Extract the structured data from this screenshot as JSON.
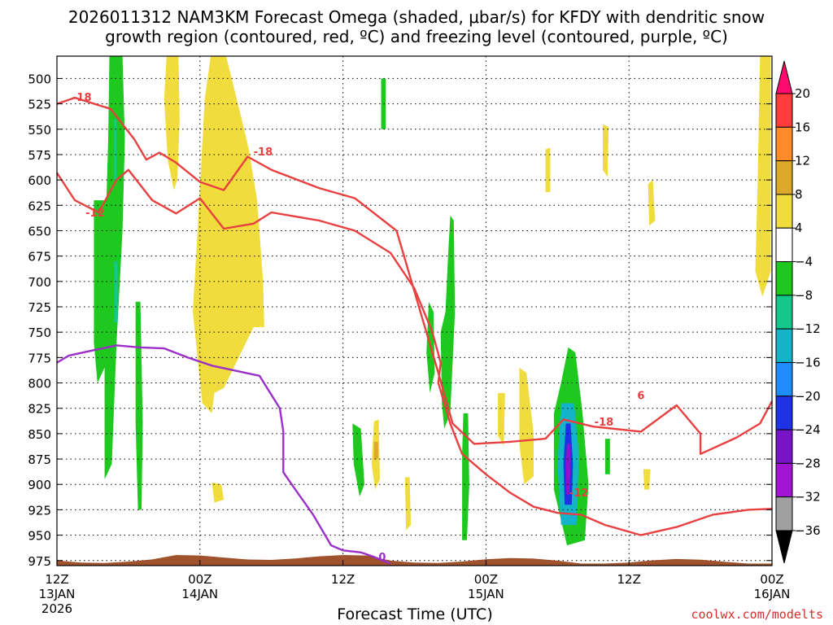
{
  "title_line1": "2026011312 NAM3KM Forecast Omega (shaded, μbar/s) for KFDY with dendritic snow",
  "title_line2": "growth region (contoured, red, ºC) and freezing level (contoured, purple, ºC)",
  "xlabel": "Forecast Time (UTC)",
  "credit": "coolwx.com/modelts",
  "chart_data": {
    "type": "heatmap",
    "y_axis": {
      "label": "",
      "scale": "pressure (hPa), inverted",
      "range": [
        980,
        478
      ],
      "ticks": [
        500,
        525,
        550,
        575,
        600,
        625,
        650,
        675,
        700,
        725,
        750,
        775,
        800,
        825,
        850,
        875,
        900,
        925,
        950,
        975
      ]
    },
    "x_axis": {
      "range_hours": [
        0,
        60
      ],
      "ticks": [
        {
          "hour": 0,
          "line1": "12Z",
          "line2": "13JAN",
          "line3": "2026"
        },
        {
          "hour": 12,
          "line1": "00Z",
          "line2": "14JAN",
          "line3": ""
        },
        {
          "hour": 24,
          "line1": "12Z",
          "line2": "",
          "line3": ""
        },
        {
          "hour": 36,
          "line1": "00Z",
          "line2": "15JAN",
          "line3": ""
        },
        {
          "hour": 48,
          "line1": "12Z",
          "line2": "",
          "line3": ""
        },
        {
          "hour": 60,
          "line1": "00Z",
          "line2": "16JAN",
          "line3": ""
        }
      ]
    },
    "grid": true,
    "colorbar": {
      "labels": [
        "20",
        "16",
        "12",
        "8",
        "4",
        "−4",
        "−8",
        "−12",
        "−16",
        "−20",
        "−24",
        "−28",
        "−32",
        "−36"
      ],
      "colors": [
        "#ff0a6e",
        "#ff3c3c",
        "#ff8c28",
        "#dcaa28",
        "#f0dc3c",
        "#ffffff",
        "#1ec81e",
        "#14c88c",
        "#14b4c8",
        "#1e8cff",
        "#1e32e6",
        "#7814c8",
        "#a014d2",
        "#a0a0a0",
        "#000000"
      ]
    },
    "omega_regions": [
      {
        "color": "#1ec81e",
        "value_range": "-4 to -8",
        "poly": [
          [
            4.4,
            478
          ],
          [
            5.5,
            478
          ],
          [
            5.7,
            560
          ],
          [
            5.5,
            650
          ],
          [
            5.0,
            760
          ],
          [
            4.6,
            880
          ],
          [
            4.0,
            895
          ],
          [
            4.0,
            760
          ],
          [
            4.1,
            640
          ],
          [
            4.3,
            560
          ]
        ]
      },
      {
        "color": "#1ec81e",
        "value_range": "-4 to -8",
        "poly": [
          [
            3.1,
            620
          ],
          [
            4.2,
            620
          ],
          [
            4.2,
            780
          ],
          [
            3.4,
            800
          ],
          [
            3.1,
            760
          ]
        ]
      },
      {
        "color": "#14c88c",
        "value_range": "-8 to -12",
        "poly": [
          [
            4.8,
            540
          ],
          [
            5.0,
            540
          ],
          [
            5.0,
            600
          ],
          [
            4.8,
            600
          ]
        ]
      },
      {
        "color": "#14c88c",
        "value_range": "-8 to -12",
        "poly": [
          [
            4.8,
            680
          ],
          [
            5.1,
            680
          ],
          [
            5.1,
            740
          ],
          [
            4.8,
            740
          ]
        ]
      },
      {
        "color": "#1ec81e",
        "value_range": "-4 to -8",
        "poly": [
          [
            6.6,
            720
          ],
          [
            7.0,
            720
          ],
          [
            7.2,
            840
          ],
          [
            7.1,
            925
          ],
          [
            6.8,
            925
          ],
          [
            6.6,
            840
          ]
        ]
      },
      {
        "color": "#1ec81e",
        "value_range": "-4 to -8",
        "poly": [
          [
            27.2,
            500
          ],
          [
            27.6,
            500
          ],
          [
            27.6,
            550
          ],
          [
            27.2,
            550
          ]
        ]
      },
      {
        "color": "#1ec81e",
        "value_range": "-4 to -8",
        "poly": [
          [
            33.0,
            635
          ],
          [
            33.3,
            640
          ],
          [
            33.4,
            730
          ],
          [
            33.0,
            830
          ],
          [
            32.5,
            845
          ],
          [
            32.3,
            820
          ],
          [
            32.2,
            750
          ],
          [
            32.6,
            730
          ],
          [
            32.8,
            680
          ]
        ]
      },
      {
        "color": "#1ec81e",
        "value_range": "-4 to -8",
        "poly": [
          [
            31.2,
            720
          ],
          [
            31.6,
            730
          ],
          [
            31.7,
            790
          ],
          [
            31.3,
            810
          ],
          [
            31.0,
            770
          ]
        ]
      },
      {
        "color": "#1ec81e",
        "value_range": "-4 to -8",
        "poly": [
          [
            24.8,
            840
          ],
          [
            25.5,
            845
          ],
          [
            25.8,
            900
          ],
          [
            25.4,
            912
          ],
          [
            24.9,
            880
          ]
        ]
      },
      {
        "color": "#1ec81e",
        "value_range": "-4 to -8",
        "poly": [
          [
            34.1,
            830
          ],
          [
            34.5,
            830
          ],
          [
            34.6,
            900
          ],
          [
            34.4,
            955
          ],
          [
            34.0,
            955
          ],
          [
            34.0,
            870
          ]
        ]
      },
      {
        "color": "#1ec81e",
        "value_range": "-4 to -8",
        "poly": [
          [
            42.9,
            765
          ],
          [
            43.5,
            770
          ],
          [
            44.1,
            830
          ],
          [
            44.6,
            900
          ],
          [
            44.3,
            955
          ],
          [
            42.8,
            960
          ],
          [
            41.7,
            905
          ],
          [
            41.7,
            830
          ],
          [
            42.3,
            800
          ]
        ]
      },
      {
        "color": "#14b4c8",
        "value_range": "-12 to -20",
        "poly": [
          [
            42.3,
            820
          ],
          [
            43.4,
            820
          ],
          [
            43.8,
            870
          ],
          [
            43.6,
            940
          ],
          [
            42.3,
            940
          ],
          [
            42.0,
            880
          ]
        ]
      },
      {
        "color": "#1e32e6",
        "value_range": "-20 to -28",
        "poly": [
          [
            42.7,
            840
          ],
          [
            43.1,
            840
          ],
          [
            43.3,
            880
          ],
          [
            43.2,
            920
          ],
          [
            42.6,
            920
          ],
          [
            42.5,
            880
          ]
        ]
      },
      {
        "color": "#8c14c8",
        "value_range": "-28 to -32",
        "poly": [
          [
            42.8,
            860
          ],
          [
            43.05,
            860
          ],
          [
            43.1,
            880
          ],
          [
            43.0,
            910
          ],
          [
            42.75,
            910
          ],
          [
            42.7,
            880
          ]
        ]
      },
      {
        "color": "#1ec81e",
        "value_range": "-4 to -8",
        "poly": [
          [
            46.0,
            855
          ],
          [
            46.4,
            855
          ],
          [
            46.4,
            890
          ],
          [
            46.0,
            890
          ]
        ]
      },
      {
        "color": "#f0dc3c",
        "value_range": "4 to 8",
        "poly": [
          [
            9.2,
            478
          ],
          [
            10.2,
            478
          ],
          [
            10.3,
            540
          ],
          [
            10.1,
            600
          ],
          [
            9.8,
            610
          ],
          [
            9.3,
            580
          ],
          [
            9.0,
            520
          ]
        ]
      },
      {
        "color": "#f0dc3c",
        "value_range": "4 to 8",
        "poly": [
          [
            12.9,
            478
          ],
          [
            14.2,
            478
          ],
          [
            15.5,
            540
          ],
          [
            16.1,
            570
          ],
          [
            16.8,
            620
          ],
          [
            17.3,
            700
          ],
          [
            17.4,
            745
          ],
          [
            16.5,
            745
          ],
          [
            14.0,
            805
          ],
          [
            13.2,
            810
          ],
          [
            13.0,
            830
          ],
          [
            12.2,
            820
          ],
          [
            11.4,
            730
          ],
          [
            11.8,
            650
          ],
          [
            12.4,
            520
          ]
        ]
      },
      {
        "color": "#f0dc3c",
        "value_range": "4 to 8",
        "poly": [
          [
            13.0,
            898
          ],
          [
            13.8,
            900
          ],
          [
            14.0,
            915
          ],
          [
            13.2,
            918
          ]
        ]
      },
      {
        "color": "#f0dc3c",
        "value_range": "4 to 8",
        "poly": [
          [
            26.6,
            838
          ],
          [
            27.0,
            836
          ],
          [
            27.1,
            895
          ],
          [
            26.7,
            905
          ],
          [
            26.4,
            880
          ]
        ]
      },
      {
        "color": "#f0dc3c",
        "value_range": "4 to 8",
        "poly": [
          [
            29.2,
            893
          ],
          [
            29.6,
            893
          ],
          [
            29.7,
            940
          ],
          [
            29.3,
            945
          ]
        ]
      },
      {
        "color": "#f0dc3c",
        "value_range": "4 to 8",
        "poly": [
          [
            37.0,
            810
          ],
          [
            37.6,
            810
          ],
          [
            37.5,
            862
          ],
          [
            37.0,
            852
          ]
        ]
      },
      {
        "color": "#f0dc3c",
        "value_range": "4 to 8",
        "poly": [
          [
            38.8,
            785
          ],
          [
            39.4,
            790
          ],
          [
            40.0,
            850
          ],
          [
            40.0,
            892
          ],
          [
            39.2,
            900
          ],
          [
            38.8,
            860
          ]
        ]
      },
      {
        "color": "#f0dc3c",
        "value_range": "4 to 8",
        "poly": [
          [
            41.0,
            570
          ],
          [
            41.4,
            568
          ],
          [
            41.4,
            612
          ],
          [
            41.0,
            612
          ]
        ]
      },
      {
        "color": "#f0dc3c",
        "value_range": "4 to 8",
        "poly": [
          [
            45.8,
            545
          ],
          [
            46.3,
            548
          ],
          [
            46.2,
            597
          ],
          [
            45.8,
            590
          ]
        ]
      },
      {
        "color": "#f0dc3c",
        "value_range": "4 to 8",
        "poly": [
          [
            49.6,
            604
          ],
          [
            50.0,
            600
          ],
          [
            50.2,
            640
          ],
          [
            49.7,
            645
          ]
        ]
      },
      {
        "color": "#f0dc3c",
        "value_range": "4 to 8",
        "poly": [
          [
            59.0,
            478
          ],
          [
            59.9,
            478
          ],
          [
            59.9,
            690
          ],
          [
            59.2,
            715
          ],
          [
            58.6,
            690
          ],
          [
            58.8,
            600
          ]
        ]
      },
      {
        "color": "#f0dc3c",
        "value_range": "4 to 8",
        "poly": [
          [
            49.2,
            885
          ],
          [
            49.8,
            885
          ],
          [
            49.7,
            905
          ],
          [
            49.3,
            905
          ]
        ]
      },
      {
        "color": "#dcaa28",
        "value_range": "8 to 12",
        "poly": [
          [
            26.6,
            858
          ],
          [
            26.95,
            858
          ],
          [
            26.95,
            875
          ],
          [
            26.6,
            875
          ]
        ]
      }
    ],
    "dendritic_minus18": [
      [
        0,
        525
      ],
      [
        1.5,
        519
      ],
      [
        4.5,
        530
      ],
      [
        6.5,
        560
      ],
      [
        7.5,
        580
      ],
      [
        8.6,
        573
      ],
      [
        10,
        583
      ],
      [
        12,
        602
      ],
      [
        14,
        610
      ],
      [
        16,
        577
      ],
      [
        18,
        590
      ],
      [
        22,
        608
      ],
      [
        25,
        618
      ],
      [
        28.5,
        650
      ],
      [
        30,
        710
      ],
      [
        32,
        790
      ],
      [
        33.2,
        840
      ],
      [
        35,
        860
      ],
      [
        38,
        858
      ],
      [
        41,
        855
      ],
      [
        42.5,
        836
      ],
      [
        45,
        843
      ],
      [
        49,
        848
      ],
      [
        52,
        822
      ],
      [
        54,
        850
      ],
      [
        54,
        870
      ],
      [
        57,
        854
      ],
      [
        59,
        840
      ],
      [
        60,
        818
      ]
    ],
    "dendritic_minus12": [
      [
        0,
        593
      ],
      [
        1.5,
        620
      ],
      [
        3.5,
        632
      ],
      [
        5,
        600
      ],
      [
        6,
        590
      ],
      [
        8,
        620
      ],
      [
        10,
        633
      ],
      [
        12,
        618
      ],
      [
        14,
        648
      ],
      [
        16.5,
        643
      ],
      [
        18,
        632
      ],
      [
        22,
        640
      ],
      [
        25,
        650
      ],
      [
        28,
        672
      ],
      [
        30,
        707
      ],
      [
        31.5,
        750
      ],
      [
        32.2,
        780
      ],
      [
        32,
        800
      ],
      [
        33,
        840
      ],
      [
        34,
        870
      ],
      [
        36,
        890
      ],
      [
        38,
        908
      ],
      [
        40,
        922
      ],
      [
        42,
        928
      ],
      [
        44,
        930
      ],
      [
        46,
        940
      ],
      [
        49,
        950
      ],
      [
        52,
        942
      ],
      [
        55,
        930
      ],
      [
        58,
        925
      ],
      [
        60,
        924
      ]
    ],
    "freezing_level_0C": [
      [
        0,
        780
      ],
      [
        1,
        773
      ],
      [
        3,
        768
      ],
      [
        5,
        763
      ],
      [
        7,
        765
      ],
      [
        9,
        766
      ],
      [
        11,
        775
      ],
      [
        13,
        783
      ],
      [
        15,
        788
      ],
      [
        17,
        793
      ],
      [
        18.7,
        825
      ],
      [
        19,
        848
      ],
      [
        19,
        888
      ],
      [
        20,
        905
      ],
      [
        21.5,
        930
      ],
      [
        23,
        960
      ],
      [
        24,
        965
      ],
      [
        25.5,
        967
      ],
      [
        26.5,
        971
      ],
      [
        28,
        978
      ]
    ],
    "contour_labels": [
      {
        "text": "-18",
        "hour": 2.1,
        "p": 518,
        "color": "#e84040"
      },
      {
        "text": "-18",
        "hour": 17.3,
        "p": 572,
        "color": "#e84040"
      },
      {
        "text": "-12",
        "hour": 3.2,
        "p": 632,
        "color": "#e84040"
      },
      {
        "text": "-18",
        "hour": 45.9,
        "p": 838,
        "color": "#e84040"
      },
      {
        "text": "-12",
        "hour": 43.8,
        "p": 908,
        "color": "#e84040"
      },
      {
        "text": "6",
        "hour": 49.0,
        "p": 812,
        "color": "#e84040"
      },
      {
        "text": "0",
        "hour": 27.3,
        "p": 971,
        "color": "#9b2fc8"
      }
    ]
  }
}
